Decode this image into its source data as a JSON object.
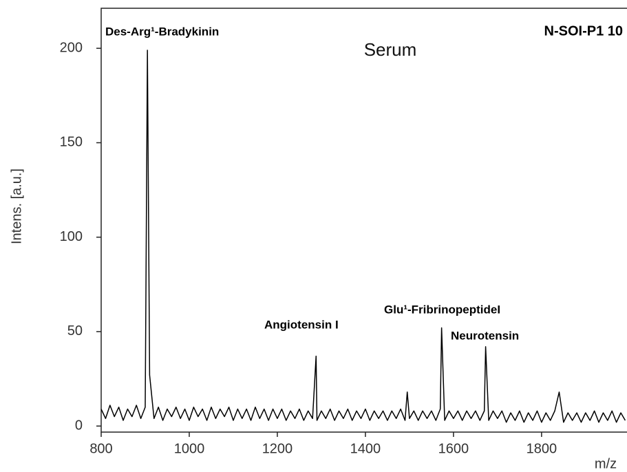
{
  "chart_data": {
    "type": "line",
    "title": "Serum",
    "subtitle": "N-SOI-P1 10",
    "x_label": "m/z",
    "y_label": "Intens. [a.u.]",
    "annotations": [
      "Des-Arg¹-Bradykinin",
      "Angiotensin I",
      "Glu¹-FribrinopeptideI",
      "Neurotensin"
    ],
    "color": "#000000",
    "x": [
      800,
      810,
      820,
      830,
      840,
      850,
      860,
      870,
      880,
      890,
      900,
      905,
      910,
      920,
      930,
      940,
      950,
      960,
      970,
      980,
      990,
      1000,
      1010,
      1020,
      1030,
      1040,
      1050,
      1060,
      1070,
      1080,
      1090,
      1100,
      1110,
      1120,
      1130,
      1140,
      1150,
      1160,
      1170,
      1180,
      1190,
      1200,
      1210,
      1220,
      1230,
      1240,
      1250,
      1260,
      1270,
      1280,
      1288,
      1290,
      1300,
      1310,
      1320,
      1330,
      1340,
      1350,
      1360,
      1370,
      1380,
      1390,
      1400,
      1410,
      1420,
      1430,
      1440,
      1450,
      1460,
      1470,
      1480,
      1490,
      1495,
      1500,
      1510,
      1520,
      1530,
      1540,
      1550,
      1560,
      1570,
      1573,
      1580,
      1590,
      1600,
      1610,
      1620,
      1630,
      1640,
      1650,
      1660,
      1670,
      1673,
      1680,
      1690,
      1700,
      1710,
      1720,
      1730,
      1740,
      1750,
      1760,
      1770,
      1780,
      1790,
      1800,
      1810,
      1820,
      1830,
      1840,
      1850,
      1860,
      1870,
      1880,
      1890,
      1900,
      1910,
      1920,
      1930,
      1940,
      1950,
      1960,
      1970,
      1980,
      1990
    ],
    "values": [
      9,
      4,
      11,
      5,
      10,
      3,
      9,
      5,
      11,
      4,
      10,
      199,
      27,
      4,
      10,
      3,
      9,
      5,
      10,
      4,
      9,
      3,
      10,
      5,
      9,
      3,
      10,
      4,
      9,
      5,
      10,
      3,
      9,
      4,
      9,
      3,
      10,
      4,
      9,
      3,
      9,
      4,
      9,
      3,
      8,
      4,
      9,
      3,
      8,
      4,
      37,
      3,
      8,
      4,
      9,
      3,
      8,
      4,
      9,
      3,
      8,
      4,
      9,
      3,
      8,
      4,
      8,
      3,
      8,
      4,
      9,
      3,
      18,
      4,
      8,
      3,
      8,
      4,
      8,
      3,
      9,
      52,
      3,
      8,
      4,
      8,
      3,
      8,
      4,
      8,
      3,
      8,
      42,
      3,
      8,
      4,
      8,
      2,
      7,
      3,
      8,
      2,
      7,
      3,
      8,
      2,
      7,
      3,
      8,
      18,
      2,
      7,
      3,
      7,
      2,
      7,
      3,
      8,
      2,
      7,
      3,
      8,
      2,
      7,
      3
    ],
    "xlim": [
      800,
      1994
    ],
    "ylim": [
      -3.2,
      221.2
    ],
    "xticks": [
      800,
      1000,
      1200,
      1400,
      1600,
      1800
    ],
    "yticks": [
      0,
      50,
      100,
      150,
      200
    ]
  }
}
